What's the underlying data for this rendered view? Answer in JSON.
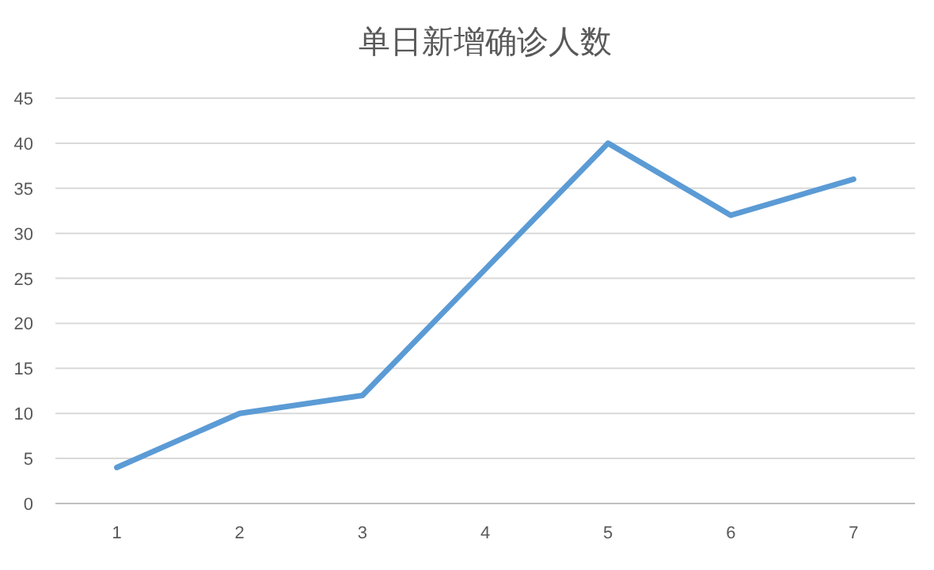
{
  "chart_data": {
    "type": "line",
    "title": "单日新增确诊人数",
    "categories": [
      "1",
      "2",
      "3",
      "4",
      "5",
      "6",
      "7"
    ],
    "series": [
      {
        "color": "#5b9bd5",
        "values": [
          4,
          10,
          12,
          26,
          40,
          32,
          36
        ]
      }
    ],
    "ylim": [
      0,
      45
    ],
    "yticks": [
      0,
      5,
      10,
      15,
      20,
      25,
      30,
      35,
      40,
      45
    ],
    "grid": "y",
    "line_style": "solid"
  }
}
